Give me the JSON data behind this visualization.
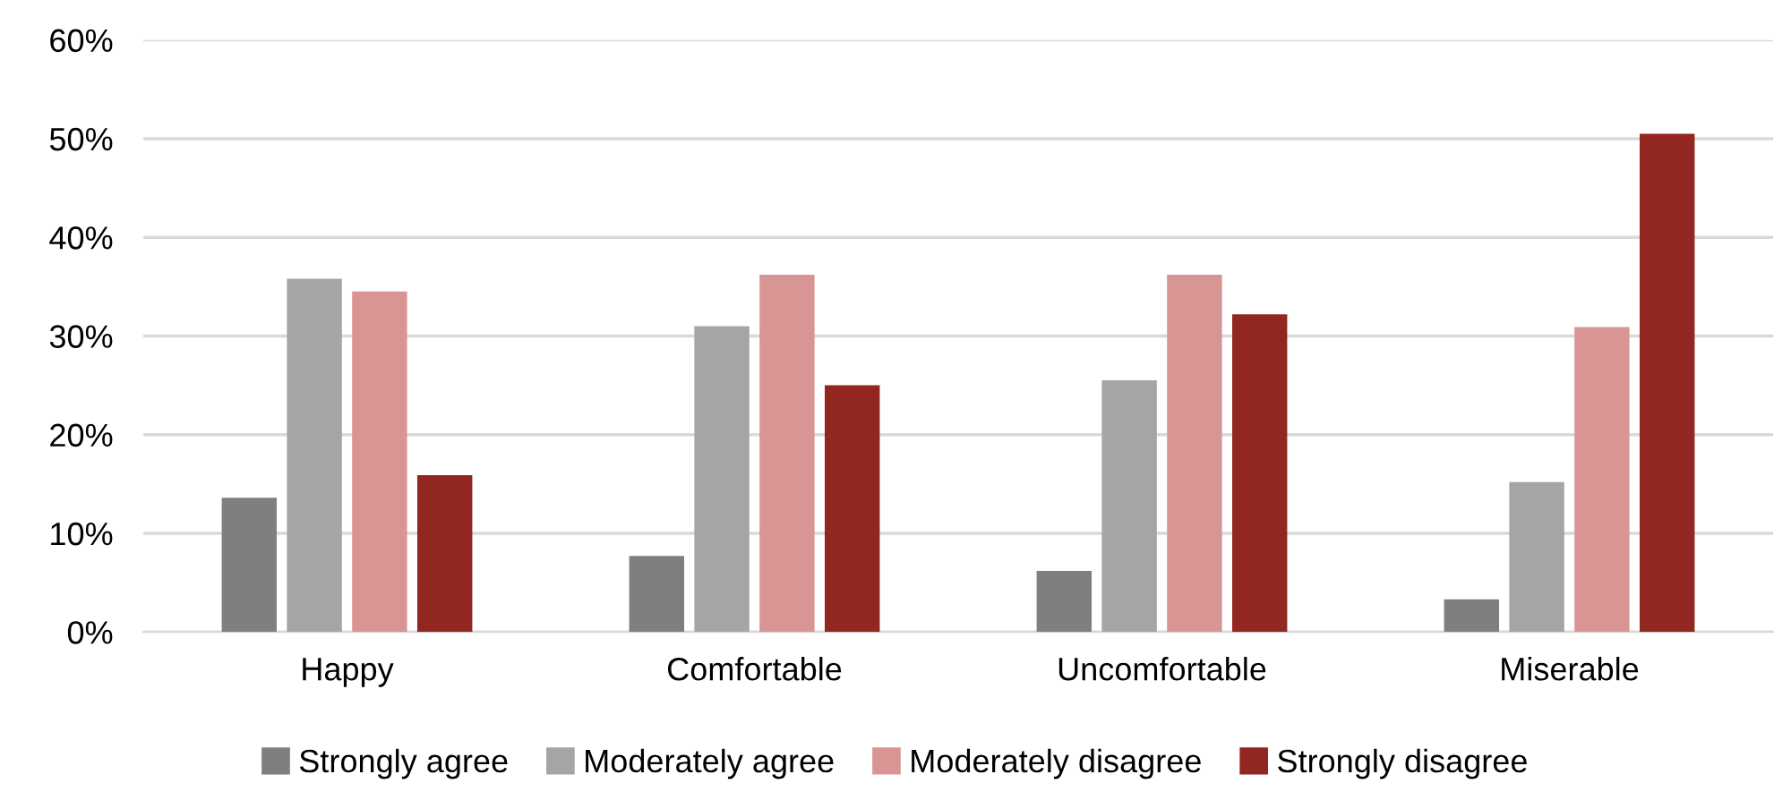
{
  "chart_data": {
    "type": "bar",
    "categories": [
      "Happy",
      "Comfortable",
      "Uncomfortable",
      "Miserable"
    ],
    "series": [
      {
        "name": "Strongly agree",
        "color": "#7f7f7f",
        "values": [
          13.6,
          7.7,
          6.2,
          3.3
        ]
      },
      {
        "name": "Moderately agree",
        "color": "#a5a5a5",
        "values": [
          35.8,
          31.0,
          25.5,
          15.2
        ]
      },
      {
        "name": "Moderately disagree",
        "color": "#d99594",
        "values": [
          34.5,
          36.2,
          36.2,
          30.9
        ]
      },
      {
        "name": "Strongly disagree",
        "color": "#922620",
        "values": [
          15.9,
          25.0,
          32.2,
          50.5
        ]
      }
    ],
    "ylim": [
      0,
      60
    ],
    "yticks": [
      {
        "value": 0,
        "label": "0%"
      },
      {
        "value": 10,
        "label": "10%"
      },
      {
        "value": 20,
        "label": "20%"
      },
      {
        "value": 30,
        "label": "30%"
      },
      {
        "value": 40,
        "label": "40%"
      },
      {
        "value": 50,
        "label": "50%"
      },
      {
        "value": 60,
        "label": "60%"
      }
    ],
    "grid": "y",
    "legend": "bottom"
  }
}
